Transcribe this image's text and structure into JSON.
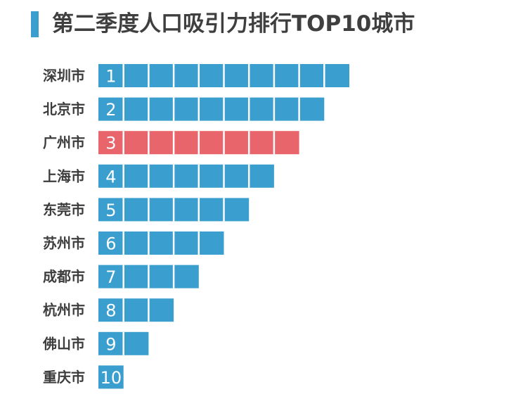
{
  "title": "第二季度人口吸引力排行TOP10城市",
  "colors": {
    "accent": "#3a9ecf",
    "highlight": "#e8656b"
  },
  "chart_data": {
    "type": "bar",
    "orientation": "horizontal",
    "title": "第二季度人口吸引力排行TOP10城市",
    "categories": [
      "深圳市",
      "北京市",
      "广州市",
      "上海市",
      "东莞市",
      "苏州市",
      "成都市",
      "杭州市",
      "佛山市",
      "重庆市"
    ],
    "values": [
      10,
      9,
      8,
      7,
      6,
      5,
      4,
      3,
      2,
      1
    ],
    "rank_labels": [
      "1",
      "2",
      "3",
      "4",
      "5",
      "6",
      "7",
      "8",
      "9",
      "10"
    ],
    "highlight_category": "广州市",
    "grid": false
  }
}
